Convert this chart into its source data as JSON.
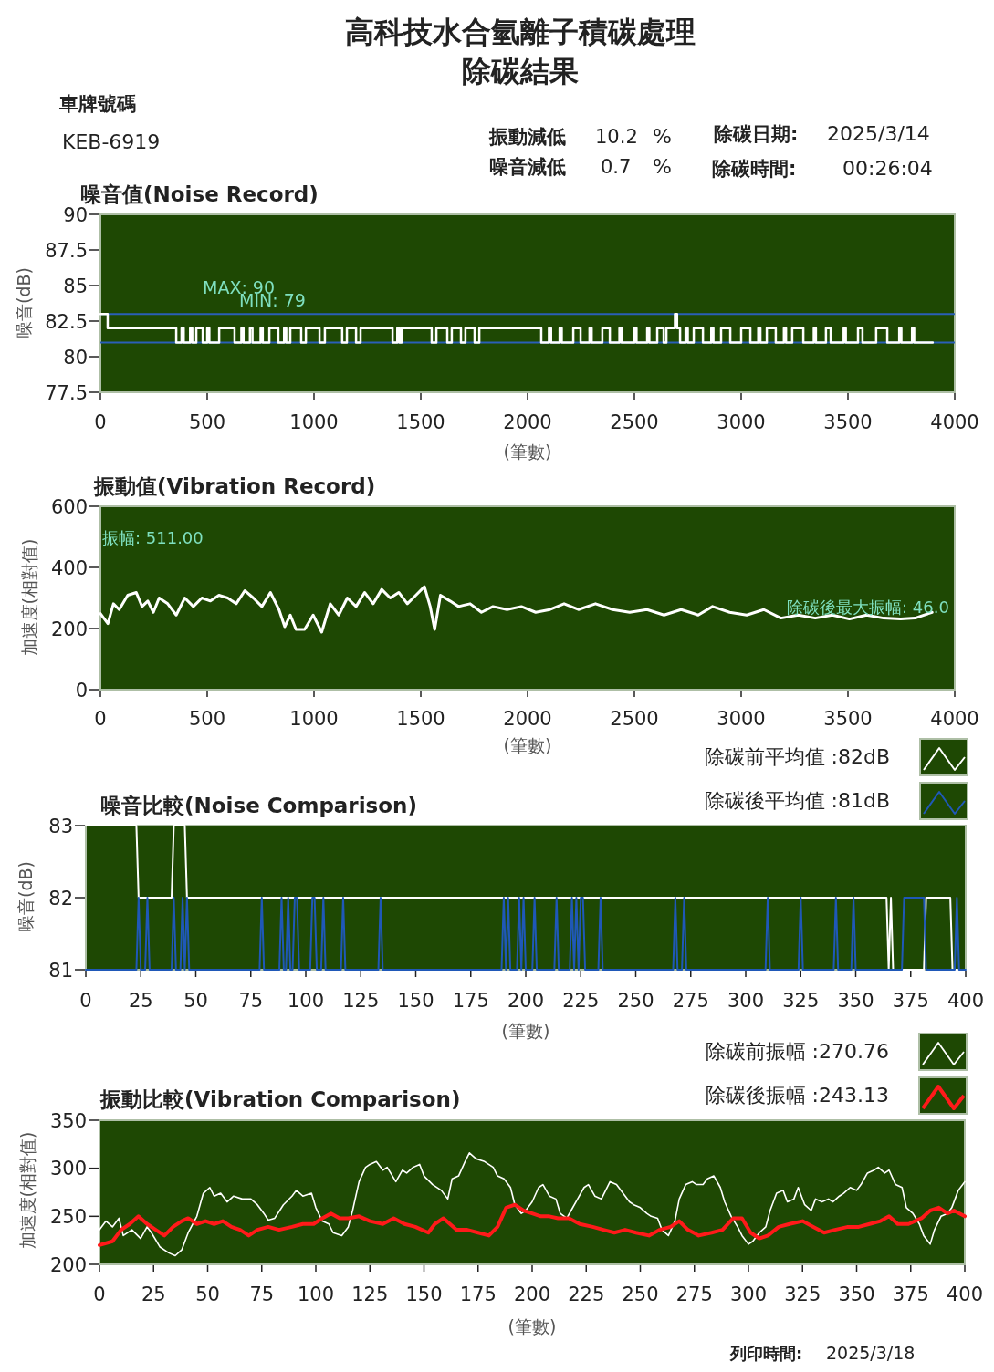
{
  "chart_data": [
    {
      "type": "other",
      "title": "高科技水合氫離子積碳處理",
      "subtitle": "除碳結果",
      "annotations": [
        "車牌號碼",
        "KEB-6919",
        "振動減低",
        "10.2",
        "%",
        "噪音減低",
        "0.7",
        "%",
        "除碳日期:",
        "2025/3/14",
        "除碳時間:",
        "00:26:04"
      ]
    },
    {
      "type": "step",
      "title": "噪音值(Noise Record)",
      "xlabel": "(筆數)",
      "ylabel": "噪音(dB)",
      "xlim": [
        0,
        4000
      ],
      "xticks": [
        0,
        500,
        1000,
        1500,
        2000,
        2500,
        3000,
        3500,
        4000
      ],
      "ylim": [
        77.5,
        90
      ],
      "yticks": [
        77.5,
        80,
        82.5,
        85,
        87.5,
        90
      ],
      "ref_lines": [
        {
          "axis": "y",
          "value": 83,
          "color": "#2a5fb8"
        },
        {
          "axis": "y",
          "value": 81,
          "color": "#2a5fb8"
        }
      ],
      "annotations": [
        "MAX: 90",
        "MIN: 79"
      ],
      "series": [
        {
          "color": "#ffffff",
          "x": [
            0,
            34,
            355,
            380,
            390,
            420,
            430,
            449,
            479,
            500,
            510,
            556,
            628,
            660,
            670,
            700,
            712,
            750,
            760,
            791,
            833,
            860,
            870,
            889,
            940,
            962,
            1026,
            1051,
            1132,
            1154,
            1197,
            1218,
            1368,
            1390,
            1400,
            1410,
            1551,
            1573,
            1624,
            1645,
            1688,
            1709,
            1752,
            1774,
            2064,
            2100,
            2110,
            2150,
            2160,
            2214,
            2248,
            2290,
            2300,
            2350,
            2385,
            2430,
            2440,
            2500,
            2510,
            2560,
            2570,
            2607,
            2637,
            2650,
            2690,
            2700,
            2714,
            2740,
            2750,
            2778,
            2821,
            2860,
            2870,
            2906,
            2949,
            3000,
            3043,
            3080,
            3090,
            3120,
            3162,
            3200,
            3210,
            3239,
            3291,
            3340,
            3350,
            3397,
            3419,
            3480,
            3490,
            3547,
            3568,
            3632,
            3684,
            3740,
            3750,
            3800,
            3810,
            3897
          ],
          "values": [
            83,
            82,
            81,
            82,
            81,
            82,
            81,
            82,
            81,
            82,
            81,
            82,
            81,
            82,
            81,
            82,
            81,
            82,
            81,
            82,
            81,
            82,
            81,
            82,
            81,
            82,
            81,
            82,
            81,
            82,
            81,
            82,
            81,
            82,
            81,
            82,
            81,
            82,
            81,
            82,
            81,
            82,
            81,
            82,
            81,
            82,
            81,
            82,
            81,
            82,
            81,
            82,
            81,
            82,
            81,
            82,
            81,
            82,
            81,
            82,
            81,
            82,
            81,
            82,
            83,
            82,
            81,
            82,
            81,
            82,
            81,
            82,
            81,
            82,
            81,
            82,
            81,
            82,
            81,
            82,
            81,
            82,
            81,
            82,
            81,
            82,
            81,
            82,
            81,
            82,
            81,
            82,
            81,
            82,
            81,
            82,
            81,
            82,
            81,
            81
          ]
        }
      ]
    },
    {
      "type": "line",
      "title": "振動值(Vibration Record)",
      "xlabel": "(筆數)",
      "ylabel": "加速度(相對值)",
      "xlim": [
        0,
        4000
      ],
      "xticks": [
        0,
        500,
        1000,
        1500,
        2000,
        2500,
        3000,
        3500,
        4000
      ],
      "ylim": [
        0,
        600
      ],
      "yticks": [
        0,
        200,
        400,
        600
      ],
      "annotations": [
        "振幅: 511.00",
        "除碳後最大振幅: 46.0"
      ],
      "series": [
        {
          "color": "#ffffff",
          "x": [
            0,
            35,
            61,
            88,
            128,
            168,
            195,
            222,
            248,
            275,
            315,
            355,
            395,
            435,
            475,
            515,
            555,
            596,
            636,
            676,
            716,
            756,
            796,
            836,
            863,
            889,
            916,
            956,
            996,
            1036,
            1076,
            1116,
            1156,
            1197,
            1237,
            1277,
            1317,
            1357,
            1397,
            1437,
            1477,
            1517,
            1544,
            1565,
            1592,
            1637,
            1677,
            1731,
            1784,
            1838,
            1904,
            1971,
            2038,
            2105,
            2171,
            2238,
            2318,
            2398,
            2478,
            2559,
            2639,
            2719,
            2799,
            2866,
            2946,
            3026,
            3106,
            3186,
            3267,
            3347,
            3427,
            3507,
            3587,
            3667,
            3747,
            3814,
            3894
          ],
          "values": [
            249,
            216,
            281,
            262,
            309,
            318,
            272,
            290,
            253,
            300,
            281,
            244,
            300,
            272,
            300,
            290,
            309,
            300,
            281,
            324,
            300,
            272,
            318,
            262,
            206,
            244,
            197,
            197,
            244,
            188,
            281,
            244,
            300,
            272,
            318,
            281,
            328,
            300,
            318,
            281,
            309,
            337,
            272,
            197,
            309,
            290,
            272,
            281,
            253,
            272,
            262,
            272,
            253,
            262,
            281,
            262,
            281,
            262,
            253,
            262,
            244,
            262,
            244,
            272,
            253,
            244,
            262,
            234,
            244,
            234,
            244,
            231,
            244,
            234,
            231,
            234,
            253
          ]
        }
      ]
    },
    {
      "type": "line",
      "title": "噪音比較(Noise Comparison)",
      "xlabel": "(筆數)",
      "ylabel": "噪音(dB)",
      "xlim": [
        0,
        400
      ],
      "xticks": [
        0,
        25,
        50,
        75,
        100,
        125,
        150,
        175,
        200,
        225,
        250,
        275,
        300,
        325,
        350,
        375,
        400
      ],
      "ylim": [
        81,
        83
      ],
      "yticks": [
        81,
        82,
        83
      ],
      "legend": "top right",
      "series": [
        {
          "name": "除碳前平均值 :82dB",
          "color": "#ffffff",
          "x": [
            0,
            23,
            24,
            39,
            40,
            45,
            46,
            364,
            365,
            366,
            367,
            381,
            382,
            393,
            394,
            400
          ],
          "values": [
            83,
            83,
            82,
            82,
            83,
            83,
            82,
            82,
            81,
            82,
            81,
            81,
            82,
            82,
            81,
            81
          ]
        },
        {
          "name": "除碳後平均值 :81dB",
          "color": "#1f58b8",
          "x": [
            0,
            23,
            24,
            25,
            27,
            28,
            29,
            39,
            40,
            41,
            43,
            44,
            45,
            46,
            47,
            79,
            80,
            81,
            88,
            89,
            90,
            91,
            92,
            93,
            94,
            95,
            96,
            97,
            102,
            103,
            104,
            105,
            107,
            108,
            109,
            116,
            117,
            118,
            133,
            134,
            135,
            189,
            190,
            191,
            192,
            193,
            196,
            197,
            198,
            199,
            200,
            203,
            204,
            205,
            213,
            214,
            215,
            220,
            221,
            222,
            223,
            224,
            225,
            226,
            227,
            233,
            234,
            235,
            267,
            268,
            269,
            271,
            272,
            273,
            309,
            310,
            311,
            324,
            325,
            326,
            340,
            341,
            342,
            348,
            349,
            350,
            371,
            372,
            381,
            382,
            395,
            396,
            397,
            400
          ],
          "values": [
            81,
            81,
            82,
            81,
            81,
            82,
            81,
            81,
            82,
            81,
            81,
            82,
            81,
            82,
            81,
            81,
            82,
            81,
            81,
            82,
            81,
            81,
            82,
            81,
            81,
            82,
            82,
            81,
            81,
            82,
            82,
            81,
            81,
            82,
            81,
            81,
            82,
            81,
            81,
            82,
            81,
            81,
            82,
            81,
            82,
            81,
            81,
            82,
            81,
            82,
            81,
            81,
            82,
            81,
            81,
            82,
            81,
            81,
            82,
            81,
            82,
            81,
            82,
            82,
            81,
            81,
            82,
            81,
            81,
            82,
            81,
            81,
            82,
            81,
            81,
            82,
            81,
            81,
            82,
            81,
            81,
            82,
            81,
            81,
            82,
            81,
            81,
            82,
            82,
            81,
            81,
            82,
            81,
            81
          ]
        }
      ]
    },
    {
      "type": "line",
      "title": "振動比較(Vibration Comparison)",
      "xlabel": "(筆數)",
      "ylabel": "加速度(相對值)",
      "xlim": [
        0,
        400
      ],
      "xticks": [
        0,
        25,
        50,
        75,
        100,
        125,
        150,
        175,
        200,
        225,
        250,
        275,
        300,
        325,
        350,
        375,
        400
      ],
      "ylim": [
        200,
        350
      ],
      "yticks": [
        200,
        250,
        300,
        350
      ],
      "legend": "top right",
      "annotations": [
        "列印時間:",
        "2025/3/18"
      ],
      "series": [
        {
          "name": "除碳前振幅 :270.76",
          "color": "#ffffff",
          "x": [
            0,
            3,
            6,
            9,
            11,
            15,
            19,
            22,
            24,
            28,
            32,
            35,
            38,
            41,
            45,
            48,
            51,
            53,
            56,
            59,
            62,
            66,
            70,
            73,
            76,
            78,
            81,
            85,
            89,
            91,
            94,
            98,
            100,
            103,
            106,
            108,
            112,
            115,
            117,
            120,
            123,
            125,
            128,
            131,
            133,
            137,
            140,
            142,
            145,
            148,
            150,
            154,
            158,
            161,
            163,
            166,
            169,
            171,
            174,
            178,
            182,
            184,
            187,
            190,
            192,
            195,
            197,
            200,
            203,
            205,
            208,
            211,
            213,
            216,
            218,
            221,
            224,
            226,
            229,
            232,
            236,
            239,
            242,
            245,
            247,
            250,
            253,
            255,
            258,
            260,
            263,
            266,
            268,
            271,
            274,
            276,
            279,
            281,
            284,
            287,
            289,
            292,
            295,
            297,
            300,
            302,
            305,
            308,
            310,
            313,
            316,
            318,
            321,
            323,
            326,
            329,
            331,
            334,
            337,
            339,
            342,
            344,
            347,
            350,
            352,
            355,
            358,
            360,
            363,
            365,
            368,
            371,
            373,
            376,
            379,
            381,
            384,
            386,
            389,
            392,
            394,
            397,
            400
          ],
          "values": [
            236,
            245,
            239,
            248,
            230,
            236,
            227,
            239,
            233,
            218,
            212,
            209,
            215,
            233,
            250,
            274,
            280,
            271,
            274,
            265,
            271,
            268,
            268,
            262,
            253,
            246,
            248,
            262,
            271,
            277,
            271,
            274,
            259,
            245,
            242,
            233,
            230,
            239,
            256,
            286,
            301,
            304,
            307,
            298,
            301,
            286,
            298,
            295,
            301,
            304,
            292,
            283,
            277,
            268,
            289,
            292,
            307,
            316,
            310,
            307,
            301,
            292,
            289,
            280,
            262,
            253,
            256,
            265,
            280,
            283,
            271,
            268,
            253,
            248,
            256,
            268,
            280,
            283,
            271,
            268,
            286,
            283,
            274,
            265,
            262,
            259,
            253,
            250,
            248,
            236,
            230,
            245,
            268,
            283,
            286,
            283,
            283,
            289,
            292,
            280,
            265,
            250,
            239,
            230,
            221,
            224,
            233,
            239,
            256,
            274,
            277,
            265,
            268,
            280,
            262,
            256,
            268,
            265,
            268,
            265,
            271,
            274,
            280,
            277,
            283,
            295,
            298,
            301,
            295,
            298,
            283,
            280,
            259,
            253,
            242,
            230,
            221,
            236,
            250,
            253,
            259,
            277,
            286
          ]
        },
        {
          "name": "除碳後振幅 :243.13",
          "color": "#ff1a1a",
          "x": [
            0,
            6,
            10,
            14,
            18,
            22,
            26,
            30,
            34,
            38,
            41,
            45,
            49,
            53,
            57,
            61,
            65,
            69,
            73,
            78,
            83,
            89,
            94,
            99,
            103,
            107,
            111,
            115,
            120,
            125,
            131,
            136,
            141,
            146,
            152,
            155,
            159,
            165,
            170,
            175,
            180,
            184,
            188,
            192,
            196,
            200,
            204,
            208,
            212,
            217,
            222,
            228,
            233,
            238,
            243,
            248,
            254,
            259,
            264,
            268,
            272,
            277,
            283,
            288,
            293,
            297,
            301,
            305,
            309,
            314,
            319,
            325,
            330,
            335,
            340,
            346,
            351,
            356,
            361,
            365,
            369,
            374,
            380,
            384,
            388,
            392,
            395,
            400
          ],
          "values": [
            220,
            224,
            236,
            242,
            250,
            242,
            236,
            230,
            239,
            245,
            248,
            242,
            245,
            242,
            245,
            239,
            236,
            230,
            236,
            239,
            236,
            239,
            242,
            242,
            248,
            253,
            248,
            248,
            250,
            245,
            242,
            248,
            242,
            239,
            233,
            242,
            248,
            236,
            236,
            233,
            230,
            239,
            259,
            262,
            256,
            253,
            250,
            250,
            248,
            248,
            242,
            239,
            236,
            233,
            236,
            233,
            230,
            236,
            239,
            245,
            236,
            230,
            233,
            236,
            248,
            248,
            233,
            227,
            230,
            239,
            242,
            245,
            239,
            233,
            236,
            239,
            239,
            242,
            245,
            250,
            242,
            242,
            248,
            256,
            259,
            253,
            256,
            250
          ]
        }
      ]
    }
  ]
}
